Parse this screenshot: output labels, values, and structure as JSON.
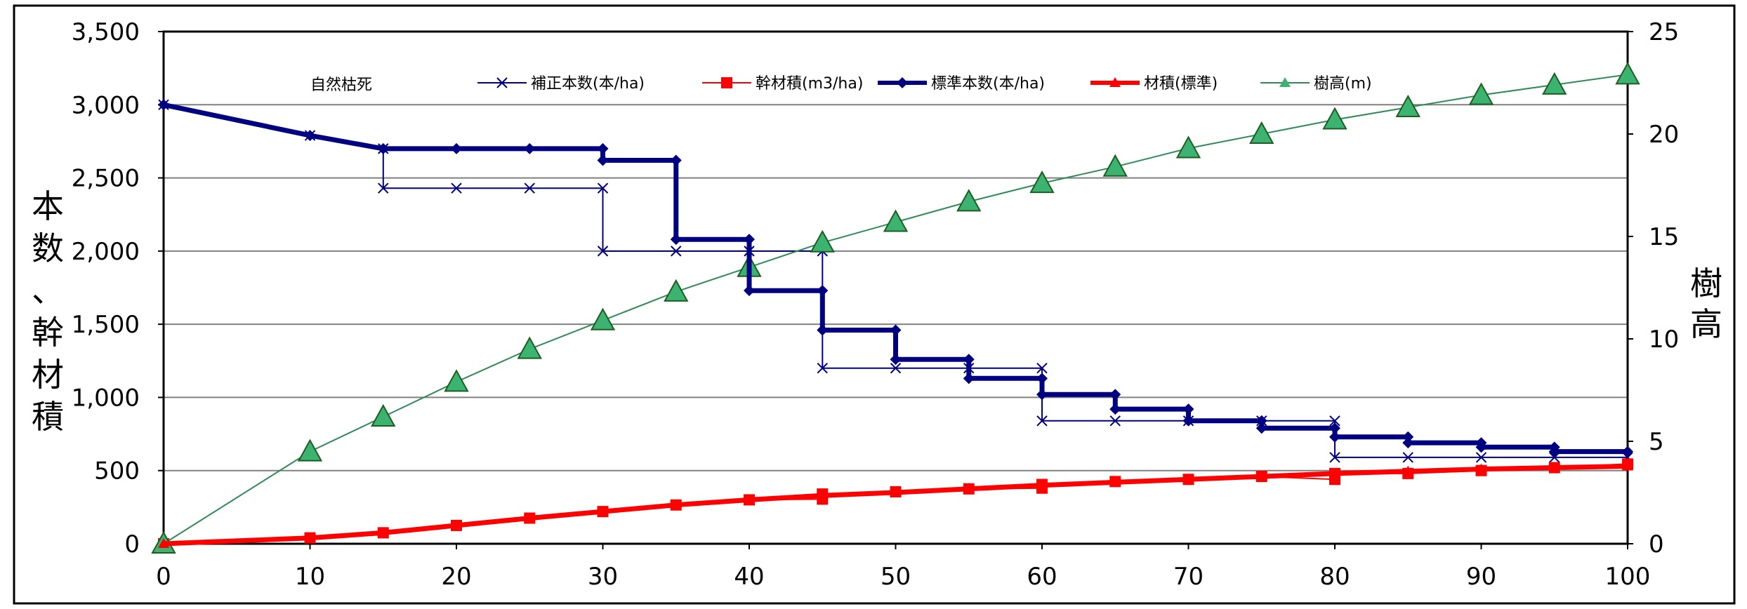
{
  "chart_data": {
    "type": "line",
    "annotation": "自然枯死",
    "x_ticks": [
      "0",
      "10",
      "20",
      "30",
      "40",
      "50",
      "60",
      "70",
      "80",
      "90",
      "100"
    ],
    "y_left_ticks": [
      "0",
      "500",
      "1,000",
      "1,500",
      "2,000",
      "2,500",
      "3,000",
      "3,500"
    ],
    "y_right_ticks": [
      "0",
      "5",
      "10",
      "15",
      "20",
      "25"
    ],
    "xlim": [
      0,
      100
    ],
    "ylim_left": [
      0,
      3500
    ],
    "ylim_right": [
      0,
      25
    ],
    "grid": "horizontal",
    "legend_position": "top",
    "ylabel_left": "本数、幹材積",
    "ylabel_right": "樹高",
    "series": [
      {
        "name": "補正本数(本/ha)",
        "axis": "left",
        "color": "#000080",
        "marker": "x",
        "width": "thin",
        "points": [
          [
            0,
            3000
          ],
          [
            10,
            2790
          ],
          [
            15,
            2700
          ],
          [
            15,
            2430
          ],
          [
            20,
            2430
          ],
          [
            25,
            2430
          ],
          [
            30,
            2430
          ],
          [
            30,
            2000
          ],
          [
            35,
            2000
          ],
          [
            40,
            2000
          ],
          [
            45,
            2000
          ],
          [
            45,
            1200
          ],
          [
            50,
            1200
          ],
          [
            55,
            1200
          ],
          [
            60,
            1200
          ],
          [
            60,
            840
          ],
          [
            65,
            840
          ],
          [
            70,
            840
          ],
          [
            75,
            840
          ],
          [
            80,
            840
          ],
          [
            80,
            590
          ],
          [
            85,
            590
          ],
          [
            90,
            590
          ],
          [
            95,
            590
          ],
          [
            100,
            590
          ]
        ]
      },
      {
        "name": "幹材積(m3/ha)",
        "axis": "left",
        "color": "#ff0000",
        "marker": "square",
        "width": "thin",
        "points": [
          [
            0,
            0
          ],
          [
            10,
            40
          ],
          [
            15,
            75
          ],
          [
            20,
            125
          ],
          [
            25,
            175
          ],
          [
            30,
            220
          ],
          [
            35,
            265
          ],
          [
            40,
            300
          ],
          [
            45,
            305
          ],
          [
            45,
            340
          ],
          [
            50,
            355
          ],
          [
            55,
            375
          ],
          [
            60,
            380
          ],
          [
            60,
            405
          ],
          [
            65,
            425
          ],
          [
            70,
            440
          ],
          [
            75,
            460
          ],
          [
            80,
            440
          ],
          [
            80,
            480
          ],
          [
            85,
            480
          ],
          [
            90,
            500
          ],
          [
            95,
            520
          ],
          [
            100,
            545
          ]
        ]
      },
      {
        "name": "標準本数(本/ha)",
        "axis": "left",
        "color": "#000080",
        "marker": "diamond",
        "width": "thick",
        "points": [
          [
            0,
            3000
          ],
          [
            10,
            2790
          ],
          [
            15,
            2700
          ],
          [
            20,
            2700
          ],
          [
            25,
            2700
          ],
          [
            30,
            2700
          ],
          [
            30,
            2620
          ],
          [
            35,
            2620
          ],
          [
            35,
            2080
          ],
          [
            40,
            2080
          ],
          [
            40,
            1730
          ],
          [
            45,
            1730
          ],
          [
            45,
            1460
          ],
          [
            50,
            1460
          ],
          [
            50,
            1260
          ],
          [
            55,
            1260
          ],
          [
            55,
            1130
          ],
          [
            60,
            1130
          ],
          [
            60,
            1020
          ],
          [
            65,
            1020
          ],
          [
            65,
            920
          ],
          [
            70,
            920
          ],
          [
            70,
            840
          ],
          [
            75,
            840
          ],
          [
            75,
            790
          ],
          [
            80,
            790
          ],
          [
            80,
            730
          ],
          [
            85,
            730
          ],
          [
            85,
            690
          ],
          [
            90,
            690
          ],
          [
            90,
            660
          ],
          [
            95,
            660
          ],
          [
            95,
            630
          ],
          [
            100,
            630
          ]
        ]
      },
      {
        "name": "材積(標準)",
        "axis": "left",
        "color": "#ff0000",
        "marker": "triangle",
        "width": "thick",
        "points": [
          [
            0,
            0
          ],
          [
            10,
            40
          ],
          [
            15,
            75
          ],
          [
            20,
            125
          ],
          [
            25,
            175
          ],
          [
            30,
            220
          ],
          [
            35,
            265
          ],
          [
            40,
            300
          ],
          [
            45,
            330
          ],
          [
            50,
            350
          ],
          [
            55,
            375
          ],
          [
            60,
            400
          ],
          [
            65,
            420
          ],
          [
            70,
            440
          ],
          [
            75,
            460
          ],
          [
            80,
            480
          ],
          [
            85,
            495
          ],
          [
            90,
            510
          ],
          [
            95,
            520
          ],
          [
            100,
            530
          ]
        ]
      },
      {
        "name": "樹高(m)",
        "axis": "right",
        "color": "#2e8b57",
        "marker": "big-triangle",
        "width": "thin",
        "points": [
          [
            0,
            0
          ],
          [
            10,
            4.5
          ],
          [
            15,
            6.2
          ],
          [
            20,
            7.9
          ],
          [
            25,
            9.5
          ],
          [
            30,
            10.9
          ],
          [
            35,
            12.3
          ],
          [
            40,
            13.5
          ],
          [
            45,
            14.7
          ],
          [
            50,
            15.7
          ],
          [
            55,
            16.7
          ],
          [
            60,
            17.6
          ],
          [
            65,
            18.4
          ],
          [
            70,
            19.3
          ],
          [
            75,
            20.0
          ],
          [
            80,
            20.7
          ],
          [
            85,
            21.3
          ],
          [
            90,
            21.9
          ],
          [
            95,
            22.4
          ],
          [
            100,
            22.9
          ]
        ]
      }
    ]
  }
}
